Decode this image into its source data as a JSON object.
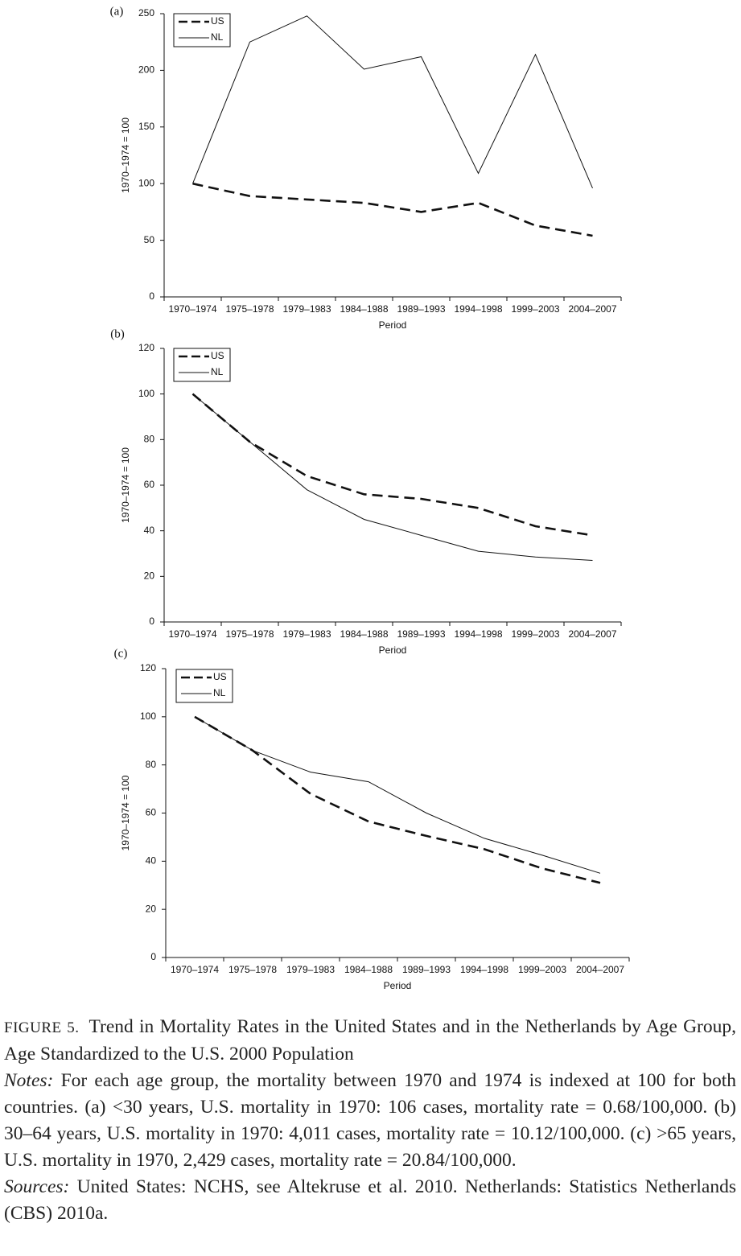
{
  "chart_data": [
    {
      "type": "line",
      "panel": "(a)",
      "x_label": "Period",
      "y_label": "1970–1974 = 100",
      "categories": [
        "1970–1974",
        "1975–1978",
        "1979–1983",
        "1984–1988",
        "1989–1993",
        "1994–1998",
        "1999–2003",
        "2004–2007"
      ],
      "series": [
        {
          "name": "US",
          "color": "#111111",
          "style": "dashed",
          "values": [
            100,
            89,
            86,
            83,
            75,
            83,
            63,
            54
          ]
        },
        {
          "name": "NL",
          "color": "#111111",
          "style": "solid",
          "values": [
            100,
            225,
            248,
            201,
            212,
            109,
            214,
            96
          ]
        }
      ],
      "ylim": [
        0,
        250
      ],
      "yticks": [
        0,
        50,
        100,
        150,
        200,
        250
      ],
      "legend": "upper left"
    },
    {
      "type": "line",
      "panel": "(b)",
      "x_label": "Period",
      "y_label": "1970–1974 = 100",
      "categories": [
        "1970–1974",
        "1975–1978",
        "1979–1983",
        "1984–1988",
        "1989–1993",
        "1994–1998",
        "1999–2003",
        "2004–2007"
      ],
      "series": [
        {
          "name": "US",
          "color": "#111111",
          "style": "dashed",
          "values": [
            100,
            79,
            64,
            56,
            54,
            50,
            42,
            38
          ]
        },
        {
          "name": "NL",
          "color": "#111111",
          "style": "solid",
          "values": [
            100,
            79,
            58,
            45,
            38,
            31,
            28.5,
            27
          ]
        }
      ],
      "ylim": [
        0,
        120
      ],
      "yticks": [
        0,
        20,
        40,
        60,
        80,
        100,
        120
      ],
      "legend": "upper left"
    },
    {
      "type": "line",
      "panel": "(c)",
      "x_label": "Period",
      "y_label": "1970–1974 = 100",
      "categories": [
        "1970–1974",
        "1975–1978",
        "1979–1983",
        "1984–1988",
        "1989–1993",
        "1994–1998",
        "1999–2003",
        "2004–2007"
      ],
      "series": [
        {
          "name": "US",
          "color": "#111111",
          "style": "dashed",
          "values": [
            100,
            86,
            68,
            56.5,
            50.5,
            45,
            37,
            31
          ]
        },
        {
          "name": "NL",
          "color": "#111111",
          "style": "solid",
          "values": [
            100,
            86,
            77,
            73,
            60,
            49.5,
            42.5,
            35
          ]
        }
      ],
      "ylim": [
        0,
        120
      ],
      "yticks": [
        0,
        20,
        40,
        60,
        80,
        100,
        120
      ],
      "legend": "upper left"
    }
  ],
  "caption": {
    "figure_label": "FIGURE 5.",
    "title": "Trend in Mortality Rates in the United States and in the Netherlands by Age Group, Age Standardized to the U.S. 2000 Population",
    "notes_label": "Notes:",
    "notes": "For each age group, the mortality between 1970 and 1974 is indexed at 100 for both countries. (a) <30 years, U.S. mortality in 1970: 106 cases, mortality rate = 0.68/100,000. (b) 30–64 years, U.S. mortality in 1970: 4,011 cases, mortality rate = 10.12/100,000. (c) >65 years, U.S. mortality in 1970, 2,429 cases, mortality rate = 20.84/100,000.",
    "sources_label": "Sources:",
    "sources": "United States: NCHS, see Altekruse et al. 2010. Netherlands: Statistics Netherlands (CBS) 2010a."
  }
}
